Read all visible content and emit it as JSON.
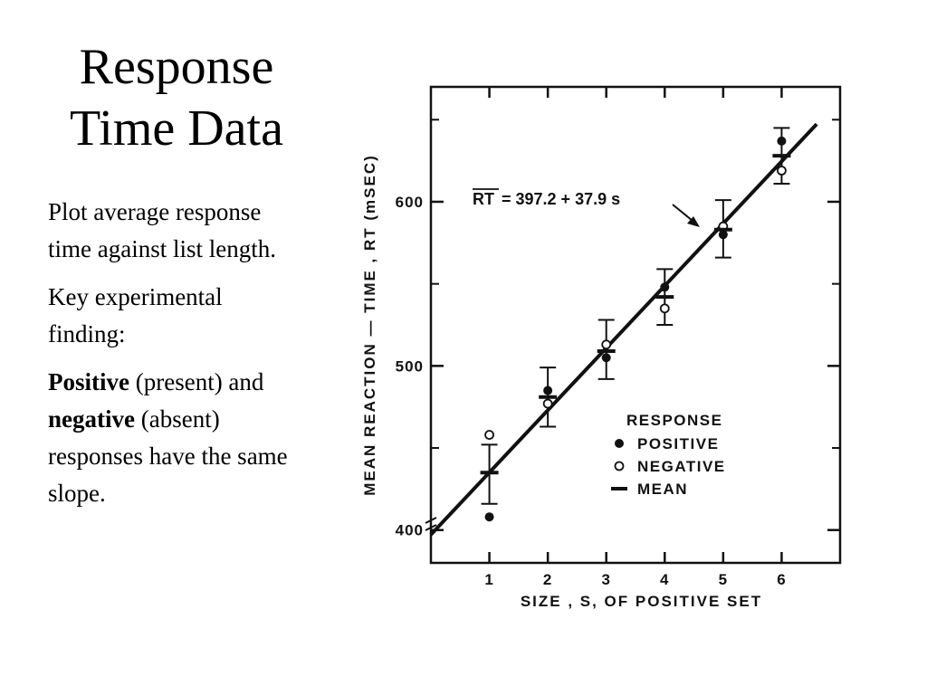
{
  "slide": {
    "title_line1": "Response",
    "title_line2": "Time Data",
    "paragraph1": "Plot average response time against list length.",
    "paragraph2": "Key experimental finding:",
    "p3_bold1": "Positive",
    "p3_text1": " (present) and ",
    "p3_bold2": "negative",
    "p3_text2": " (absent) responses have the same slope."
  },
  "chart_data": {
    "type": "scatter",
    "xlabel": "SIZE , S, OF POSITIVE SET",
    "ylabel": "MEAN REACTION — TIME , RT   (mSEC)",
    "xlim": [
      0,
      7
    ],
    "ylim": [
      380,
      670
    ],
    "x_ticks": [
      1,
      2,
      3,
      4,
      5,
      6
    ],
    "y_ticks": [
      400,
      500,
      600
    ],
    "x": [
      1,
      2,
      3,
      4,
      5,
      6
    ],
    "series": [
      {
        "name": "POSITIVE",
        "marker": "filled-circle",
        "values": [
          408,
          485,
          505,
          548,
          580,
          637
        ]
      },
      {
        "name": "NEGATIVE",
        "marker": "open-circle",
        "values": [
          458,
          477,
          513,
          535,
          585,
          619
        ]
      },
      {
        "name": "MEAN",
        "marker": "dash",
        "values": [
          435,
          481,
          509,
          542,
          583,
          628
        ],
        "error_bars": [
          [
            416,
            452
          ],
          [
            463,
            499
          ],
          [
            492,
            528
          ],
          [
            525,
            559
          ],
          [
            566,
            601
          ],
          [
            611,
            645
          ]
        ]
      }
    ],
    "fit_line": {
      "intercept": 397.2,
      "slope": 37.9
    },
    "annotation": {
      "prefix": "RT",
      "text": "= 397.2 + 37.9 s"
    },
    "legend": {
      "title": "RESPONSE",
      "position": "bottom-right"
    },
    "colors": {
      "ink": "#111111",
      "background": "#ffffff"
    }
  }
}
